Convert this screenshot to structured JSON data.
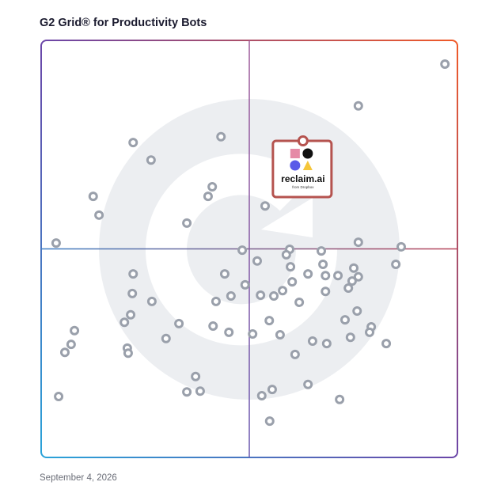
{
  "chart_data": {
    "type": "scatter",
    "title": "G2 Grid® for Productivity Bots",
    "footer": "September 4, 2026",
    "xlim": [
      0,
      100
    ],
    "ylim": [
      0,
      100
    ],
    "color": "#9aa0ab",
    "x": [
      97.0,
      76.2,
      22.1,
      43.2,
      26.4,
      41.1,
      40.1,
      12.5,
      13.9,
      53.8,
      35.0,
      3.6,
      48.3,
      59.7,
      67.3,
      76.2,
      86.5,
      58.9,
      51.9,
      67.7,
      59.9,
      85.2,
      75.1,
      22.1,
      44.1,
      64.1,
      68.3,
      71.3,
      76.2,
      74.7,
      60.3,
      49.0,
      58.0,
      73.8,
      68.3,
      21.9,
      45.6,
      52.7,
      55.9,
      26.6,
      42.0,
      62.0,
      21.5,
      20.0,
      75.9,
      73.0,
      33.1,
      54.8,
      41.3,
      79.3,
      78.9,
      8.0,
      45.1,
      50.8,
      57.4,
      74.3,
      30.0,
      65.2,
      68.6,
      82.9,
      7.2,
      20.7,
      20.9,
      5.7,
      61.0,
      37.1,
      64.1,
      35.0,
      38.2,
      55.5,
      53.0,
      4.2,
      71.7,
      54.9
    ],
    "values": [
      94.3,
      84.3,
      75.5,
      76.9,
      71.3,
      64.9,
      62.6,
      62.6,
      58.1,
      60.3,
      56.2,
      51.4,
      49.7,
      49.9,
      49.5,
      51.6,
      50.5,
      48.6,
      47.1,
      46.3,
      45.7,
      46.3,
      45.4,
      44.0,
      44.0,
      44.0,
      43.6,
      43.6,
      43.3,
      42.3,
      42.1,
      41.4,
      40.0,
      40.6,
      39.8,
      39.3,
      38.7,
      38.9,
      38.7,
      37.4,
      37.4,
      37.2,
      34.2,
      32.4,
      35.1,
      33.0,
      32.1,
      32.8,
      31.5,
      31.3,
      30.0,
      30.4,
      30.0,
      29.6,
      29.4,
      28.8,
      28.5,
      27.9,
      27.3,
      27.3,
      27.1,
      26.2,
      25.0,
      25.2,
      24.7,
      19.4,
      17.5,
      15.7,
      15.9,
      16.3,
      14.8,
      14.6,
      13.9,
      8.7
    ],
    "highlight": {
      "label": "reclaim.ai",
      "sublabel": "from Dropbox",
      "x": 62.9,
      "y": 75.9,
      "color": "#b5534f"
    }
  }
}
